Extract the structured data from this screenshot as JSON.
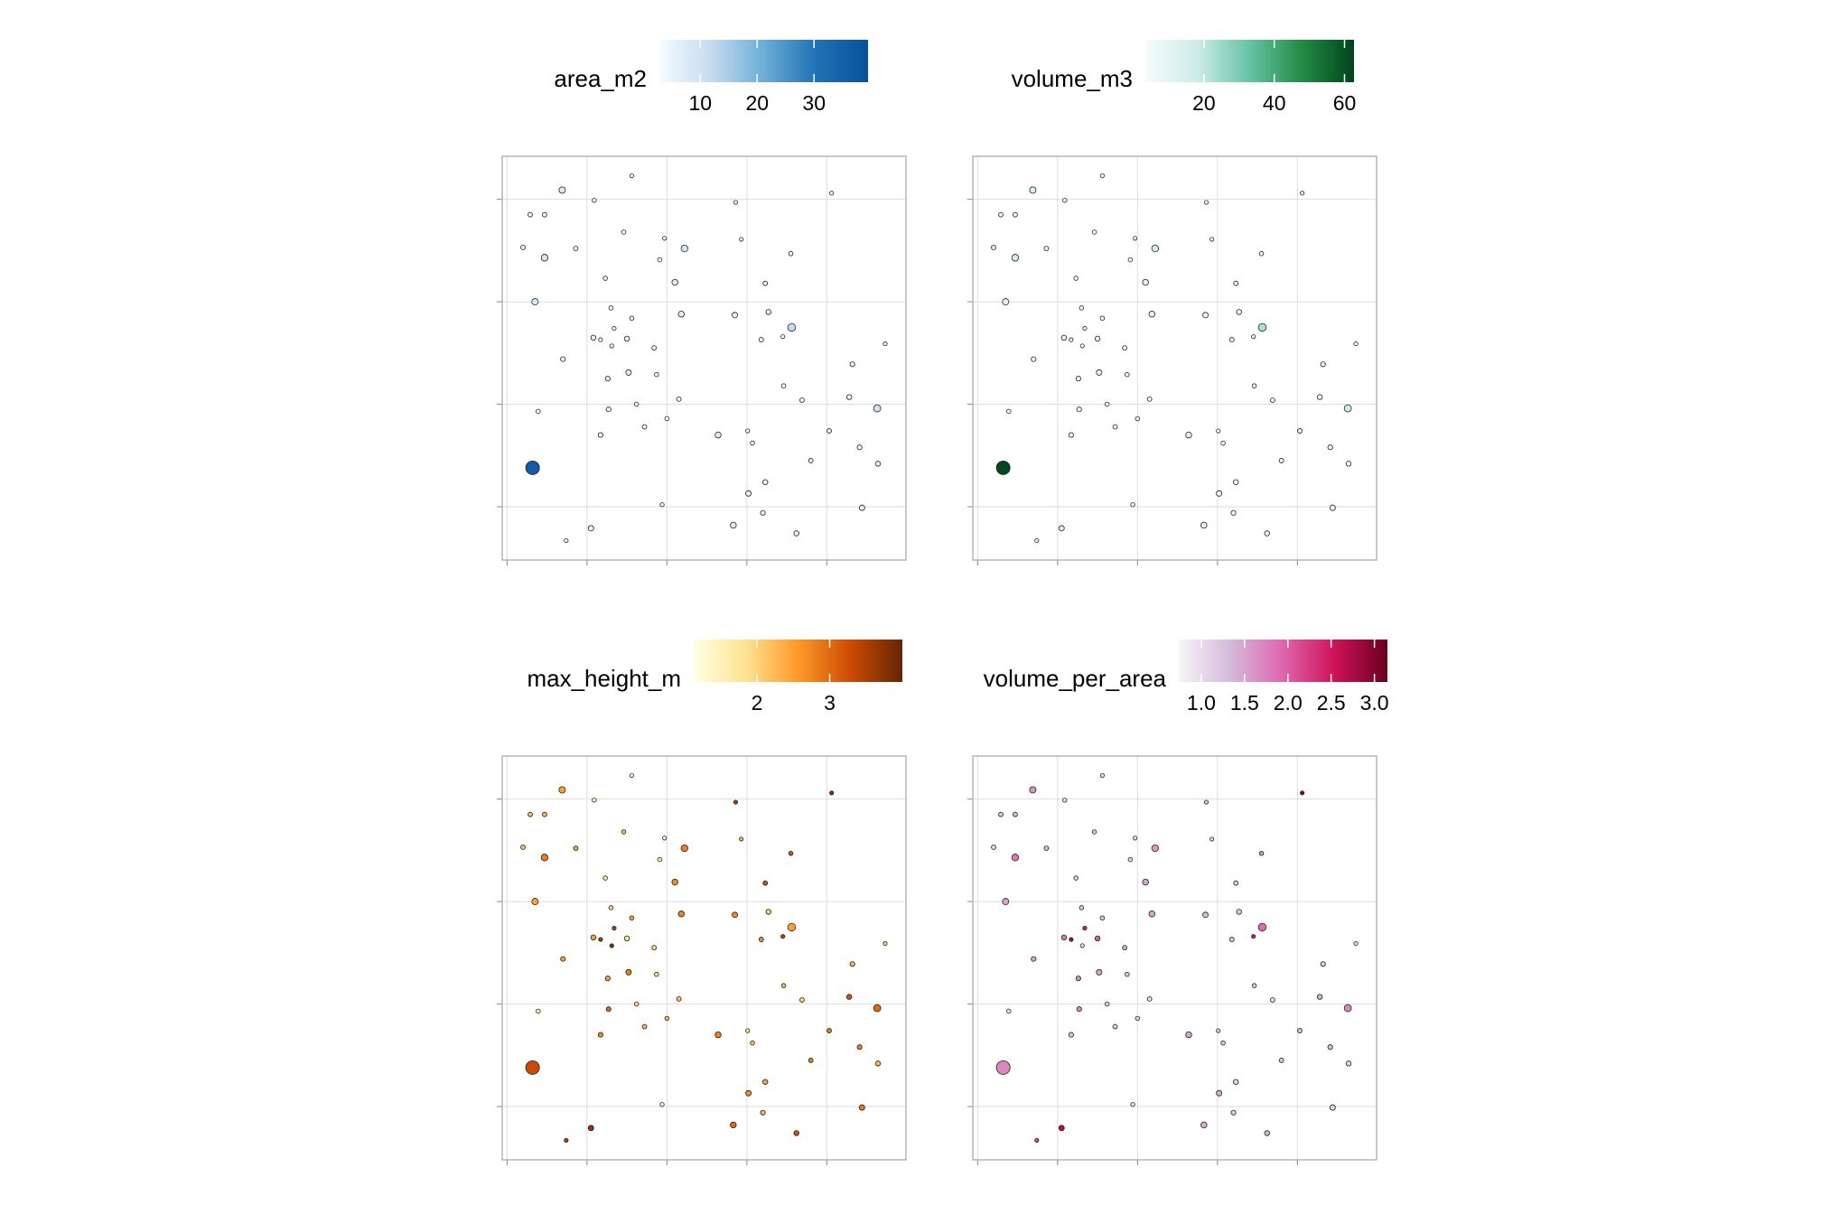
{
  "locations": {
    "x": [
      1.69,
      2.56,
      2.09,
      1.29,
      1.47,
      1.2,
      1.47,
      1.86,
      2.46,
      2.97,
      3.22,
      2.91,
      2.23,
      3.1,
      3.86,
      3.93,
      4.55,
      4.23,
      5.06,
      1.35,
      2.3,
      2.56,
      2.34,
      2.08,
      2.17,
      2.31,
      2.5,
      2.84,
      3.18,
      3.85,
      4.27,
      4.45,
      4.18,
      4.56,
      1.7,
      2.26,
      2.52,
      2.87,
      1.39,
      2.27,
      2.62,
      3.15,
      3.0,
      2.72,
      2.17,
      3.64,
      4.01,
      4.07,
      4.46,
      4.69,
      5.03,
      5.32,
      5.73,
      5.28,
      5.63,
      5.41,
      5.64,
      4.8,
      1.32,
      4.23,
      4.02,
      2.94,
      5.44,
      4.2,
      3.83,
      2.05,
      4.62,
      1.74
    ],
    "y": [
      4.09,
      4.23,
      3.99,
      3.85,
      3.85,
      3.53,
      3.43,
      3.52,
      3.68,
      3.62,
      3.52,
      3.41,
      3.23,
      3.19,
      3.97,
      3.61,
      3.47,
      3.18,
      4.06,
      3.0,
      2.94,
      2.84,
      2.74,
      2.65,
      2.63,
      2.57,
      2.64,
      2.55,
      2.88,
      2.87,
      2.9,
      2.66,
      2.63,
      2.75,
      2.44,
      2.25,
      2.31,
      2.29,
      1.93,
      1.95,
      2.0,
      2.05,
      1.86,
      1.78,
      1.7,
      1.7,
      1.74,
      1.62,
      2.18,
      2.04,
      1.74,
      2.39,
      2.59,
      2.07,
      1.96,
      1.58,
      1.42,
      1.45,
      1.38,
      1.24,
      1.13,
      1.02,
      0.99,
      0.94,
      0.82,
      0.79,
      0.74,
      0.67
    ]
  },
  "chart_data": [
    {
      "type": "map",
      "legend_title": "area_m2",
      "colorlim": [
        2.8,
        39.5
      ],
      "colorticks": [
        10,
        20,
        30
      ],
      "colors": [
        "#f7fbff",
        "#c6dbef",
        "#6baed6",
        "#2171b5",
        "#08519c"
      ],
      "xlim": [
        0.94,
        5.99
      ],
      "ylim": [
        0.48,
        4.42
      ],
      "xticks": [
        1,
        2,
        3,
        4,
        5
      ],
      "yticks": [
        1,
        2,
        3,
        4
      ],
      "grid": true,
      "values": [
        8,
        3,
        3.3,
        4,
        4,
        4,
        9,
        4,
        3.5,
        3,
        9,
        3.5,
        3.5,
        7,
        3,
        3,
        3.5,
        4,
        3,
        8,
        3.5,
        3.5,
        3,
        5,
        3,
        3,
        5,
        4,
        7,
        6,
        5,
        3,
        4,
        12,
        4.5,
        4.5,
        6,
        3.5,
        3.5,
        4.5,
        3.5,
        4,
        3.5,
        4,
        4.5,
        7,
        3,
        3.5,
        3.5,
        4,
        4,
        4.5,
        3,
        5,
        10,
        4.5,
        5,
        4,
        36.5,
        5,
        6,
        3.3,
        6,
        4.5,
        7,
        6,
        5,
        3
      ]
    },
    {
      "type": "map",
      "legend_title": "volume_m3",
      "colorlim": [
        3.3,
        62.7
      ],
      "colorticks": [
        20,
        40,
        60
      ],
      "colors": [
        "#f7fcfd",
        "#ccece6",
        "#66c2a4",
        "#238b45",
        "#00441b"
      ],
      "xlim": [
        0.94,
        5.99
      ],
      "ylim": [
        0.48,
        4.42
      ],
      "xticks": [
        1,
        2,
        3,
        4,
        5
      ],
      "yticks": [
        1,
        2,
        3,
        4
      ],
      "grid": true,
      "values": [
        12.8,
        3.3,
        3.3,
        4.8,
        5.2,
        4.4,
        16.2,
        5.2,
        4.2,
        3.3,
        14.4,
        3.9,
        3.9,
        10.5,
        3.6,
        3.3,
        5.6,
        4.4,
        9,
        12,
        4.2,
        4.2,
        7.5,
        9,
        8.4,
        3.3,
        10,
        5.6,
        10.5,
        7.8,
        6,
        7.5,
        4.8,
        22.8,
        6.8,
        7.2,
        9,
        4.2,
        3.5,
        7.7,
        3.9,
        4,
        3.9,
        4.4,
        5.4,
        10.5,
        3.3,
        4.2,
        4.2,
        4,
        4.8,
        5.4,
        3.3,
        7,
        17,
        5.9,
        5.5,
        4.8,
        62,
        5.5,
        8.4,
        3.3,
        6.6,
        5,
        9.8,
        16.2,
        7,
        6.6
      ]
    },
    {
      "type": "map",
      "legend_title": "max_height_m",
      "colorlim": [
        1.13,
        4.0
      ],
      "colorticks": [
        2,
        3
      ],
      "colors": [
        "#ffffe5",
        "#fee391",
        "#fe9929",
        "#cc4c02",
        "#662506"
      ],
      "xlim": [
        0.94,
        5.99
      ],
      "ylim": [
        0.48,
        4.42
      ],
      "xticks": [
        1,
        2,
        3,
        4,
        5
      ],
      "yticks": [
        1,
        2,
        3,
        4
      ],
      "grid": true,
      "values": [
        2.5,
        1.3,
        1.5,
        2.2,
        2.3,
        2.2,
        2.8,
        2.5,
        2.3,
        1.5,
        2.8,
        1.8,
        1.8,
        2.7,
        3.5,
        2.3,
        3.2,
        3.2,
        3.8,
        2.5,
        2.0,
        2.5,
        3.5,
        2.5,
        3.6,
        3.8,
        1.8,
        2.0,
        2.8,
        2.7,
        2.1,
        3.4,
        2.7,
        2.5,
        2.5,
        2.5,
        2.8,
        2.0,
        1.8,
        3.0,
        2.0,
        2.2,
        2.3,
        2.3,
        2.7,
        2.8,
        1.8,
        2.2,
        2.3,
        2.0,
        2.8,
        2.3,
        2.0,
        3.2,
        3.0,
        2.8,
        2.3,
        2.8,
        3.3,
        2.5,
        2.7,
        1.5,
        2.9,
        2.3,
        3.0,
        3.7,
        3.2,
        3.5
      ]
    },
    {
      "type": "map",
      "legend_title": "volume_per_area",
      "colorlim": [
        0.74,
        3.15
      ],
      "colorticks": [
        {
          "value": 1,
          "label": "1.0"
        },
        1.5,
        {
          "value": 2,
          "label": "2.0"
        },
        2.5,
        {
          "value": 3,
          "label": "3.0"
        }
      ],
      "colors": [
        "#f7f4f9",
        "#d4b9da",
        "#df65b0",
        "#ce1256",
        "#67001f"
      ],
      "xlim": [
        0.94,
        5.99
      ],
      "ylim": [
        0.48,
        4.42
      ],
      "xticks": [
        1,
        2,
        3,
        4,
        5
      ],
      "yticks": [
        1,
        2,
        3,
        4
      ],
      "grid": true,
      "values": [
        1.6,
        1.0,
        1.0,
        1.2,
        1.3,
        1.1,
        1.8,
        1.3,
        1.2,
        1.0,
        1.6,
        1.1,
        1.1,
        1.5,
        1.2,
        1.1,
        1.6,
        1.1,
        3.0,
        1.5,
        1.2,
        1.2,
        2.5,
        1.8,
        2.8,
        1.0,
        2.0,
        1.4,
        1.5,
        1.3,
        1.2,
        2.5,
        1.2,
        1.9,
        1.5,
        1.6,
        1.5,
        1.2,
        1.0,
        1.7,
        1.1,
        1.0,
        1.1,
        1.1,
        1.2,
        1.5,
        1.1,
        1.2,
        1.2,
        1.0,
        1.2,
        1.2,
        1.0,
        1.4,
        1.7,
        1.3,
        1.1,
        1.2,
        1.7,
        1.1,
        1.4,
        1.0,
        1.1,
        1.1,
        1.4,
        2.7,
        1.4,
        2.2
      ]
    }
  ]
}
